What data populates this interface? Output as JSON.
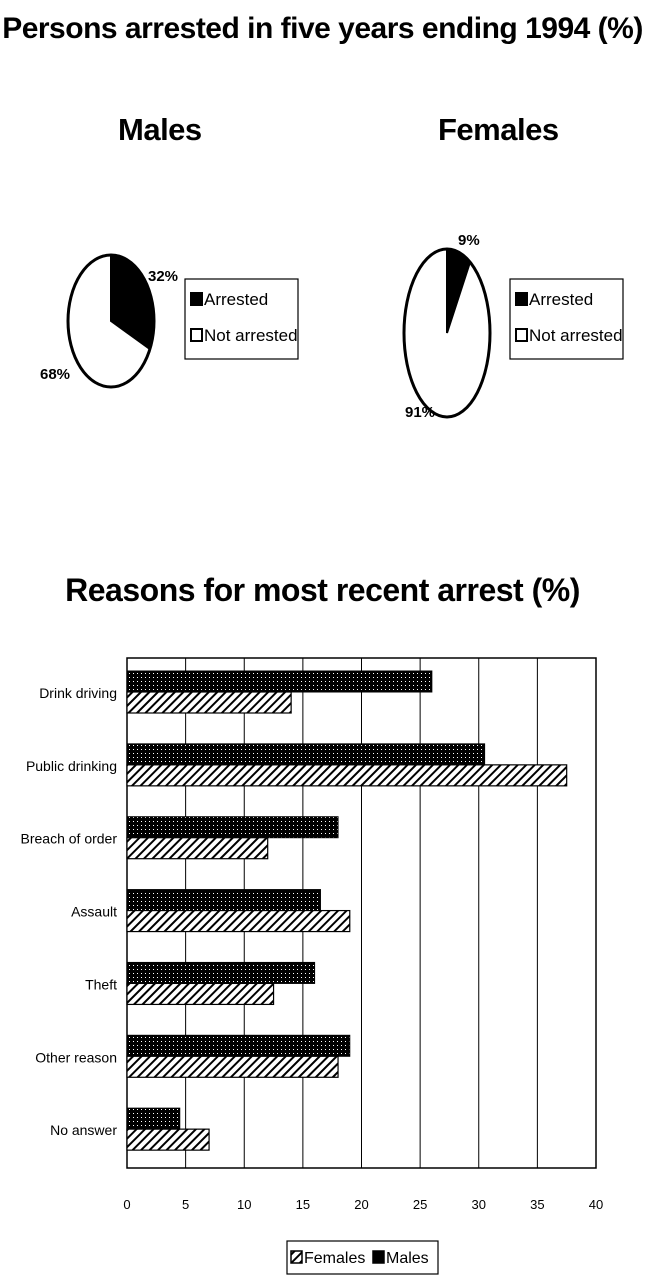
{
  "title": "Persons arrested in five years ending 1994 (%)",
  "pie_section": {
    "males_title": "Males",
    "females_title": "Females"
  },
  "bar_section": {
    "title": "Reasons for most recent arrest (%)"
  },
  "chart_data": [
    {
      "type": "pie",
      "title": "Males",
      "labels": [
        "Arrested",
        "Not arrested"
      ],
      "values": [
        32,
        68
      ],
      "slice_labels": [
        "32%",
        "68%"
      ],
      "colors": [
        "#000000",
        "#ffffff"
      ],
      "legend": [
        "Arrested",
        "Not arrested"
      ],
      "legend_placement": "right"
    },
    {
      "type": "pie",
      "title": "Females",
      "labels": [
        "Arrested",
        "Not arrested"
      ],
      "values": [
        9,
        91
      ],
      "slice_labels": [
        "9%",
        "91%"
      ],
      "colors": [
        "#000000",
        "#ffffff"
      ],
      "legend": [
        "Arrested",
        "Not arrested"
      ],
      "legend_placement": "right"
    },
    {
      "type": "bar",
      "orientation": "horizontal",
      "title": "Reasons for most recent arrest (%)",
      "categories": [
        "Drink driving",
        "Public drinking",
        "Breach of order",
        "Assault",
        "Theft",
        "Other reason",
        "No answer"
      ],
      "series": [
        {
          "name": "Males",
          "values": [
            26,
            30.5,
            18,
            16.5,
            16,
            19,
            4.5
          ],
          "pattern": "dotted-black"
        },
        {
          "name": "Females",
          "values": [
            14,
            37.5,
            12,
            19,
            12.5,
            18,
            7
          ],
          "pattern": "diagonal-hatch"
        }
      ],
      "xlim": [
        0,
        40
      ],
      "xticks": [
        "0",
        "5",
        "10",
        "15",
        "20",
        "25",
        "30",
        "35",
        "40"
      ],
      "grid": "vertical",
      "legend": [
        "Females",
        "Males"
      ],
      "legend_placement": "bottom"
    }
  ]
}
